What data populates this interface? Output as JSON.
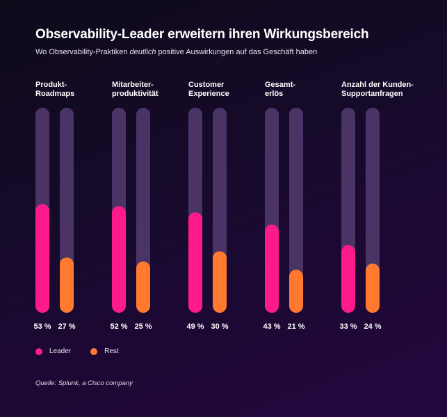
{
  "chart_data": {
    "type": "bar",
    "title": "Observability-Leader erweitern ihren Wirkungsbereich",
    "subtitle": {
      "before": "Wo Observability-Praktiken ",
      "emphasis": "deutlich",
      "after": " positive Auswirkungen auf das Geschäft haben"
    },
    "categories": [
      "Produkt-\nRoadmaps",
      "Mitarbeiter-\nproduktivität",
      "Customer\nExperience",
      "Gesamt-\nerlös",
      "Anzahl der Kunden-\nSupportanfragen"
    ],
    "series": [
      {
        "name": "Leader",
        "color": "#ff1a8c",
        "values": [
          53,
          52,
          49,
          43,
          33
        ],
        "labels": [
          "53 %",
          "52 %",
          "49 %",
          "43 %",
          "33 %"
        ]
      },
      {
        "name": "Rest",
        "color": "#ff7a2e",
        "values": [
          27,
          25,
          30,
          21,
          24
        ],
        "labels": [
          "27 %",
          "25 %",
          "30 %",
          "21 %",
          "24 %"
        ]
      }
    ],
    "ylim": [
      0,
      100
    ],
    "track_color": "#4a3466",
    "grid": false,
    "legend": "bottom-left",
    "source": "Quelle: Splunk, a Cisco company"
  }
}
